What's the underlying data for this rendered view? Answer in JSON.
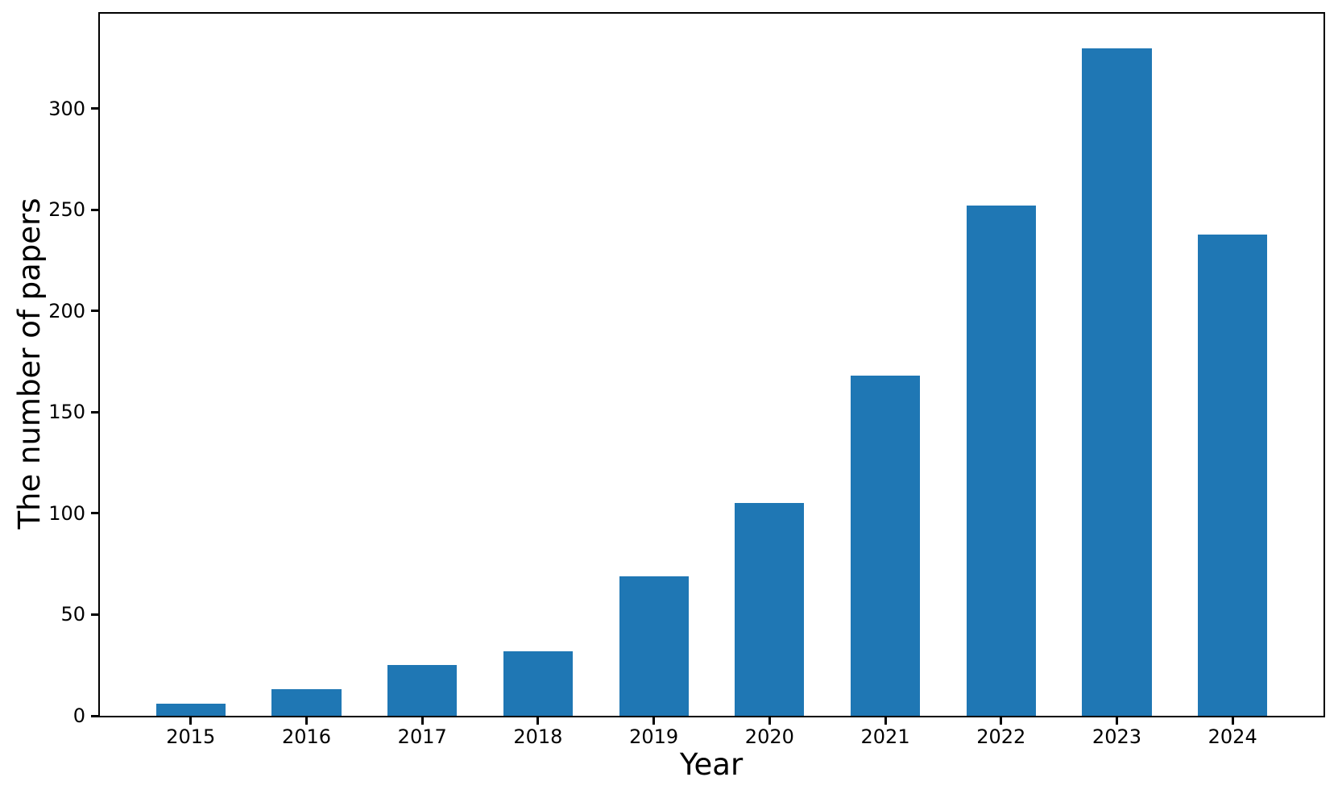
{
  "chart_data": {
    "type": "bar",
    "title": "",
    "xlabel": "Year",
    "ylabel": "The number of papers",
    "categories": [
      "2015",
      "2016",
      "2017",
      "2018",
      "2019",
      "2020",
      "2021",
      "2022",
      "2023",
      "2024"
    ],
    "values": [
      6,
      13,
      25,
      32,
      69,
      105,
      168,
      252,
      330,
      238
    ],
    "yticks": [
      0,
      50,
      100,
      150,
      200,
      250,
      300
    ],
    "ylim": [
      0,
      347
    ],
    "xlim_pad_units": 0.785,
    "bar_width_units": 0.6,
    "grid": false,
    "legend": null,
    "colors": {
      "bar": "#1f77b4",
      "axis": "#000000",
      "text": "#000000",
      "background": "#ffffff"
    }
  }
}
